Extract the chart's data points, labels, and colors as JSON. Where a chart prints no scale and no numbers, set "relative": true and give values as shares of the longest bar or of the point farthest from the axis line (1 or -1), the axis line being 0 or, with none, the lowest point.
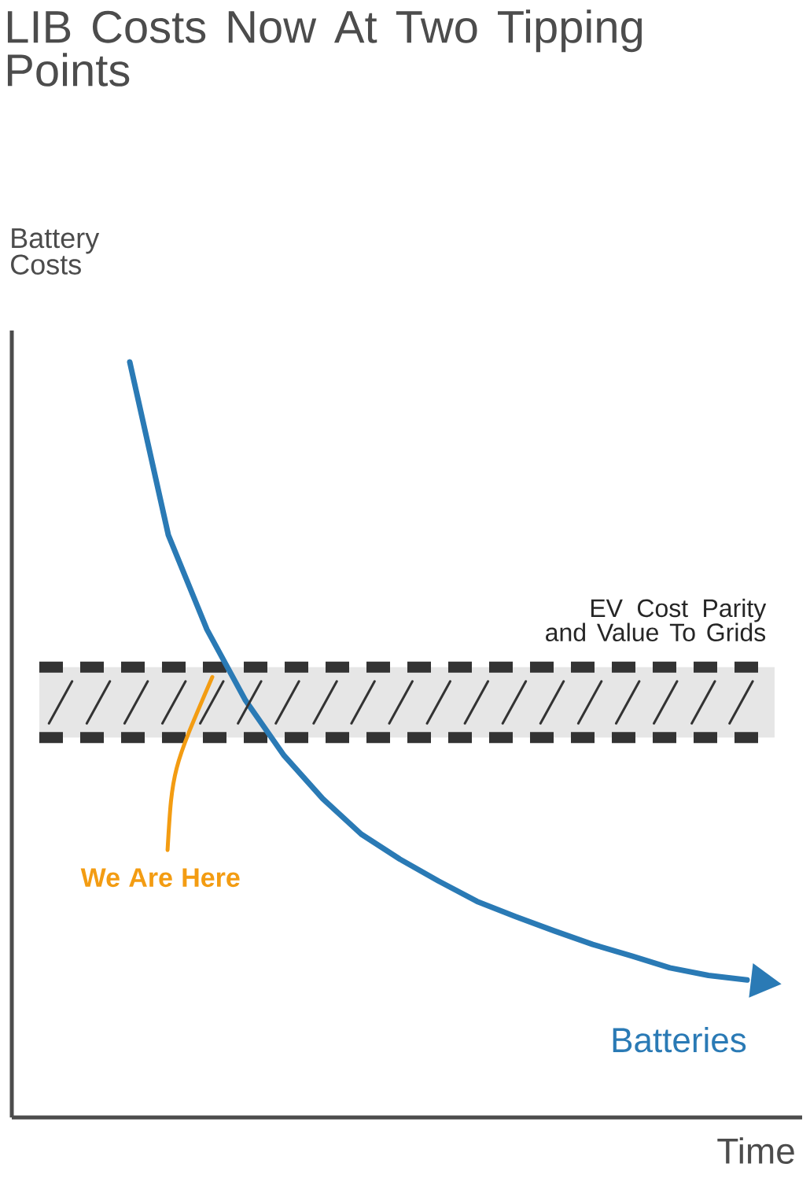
{
  "chart_data": {
    "type": "line",
    "title": "LIB Costs Now At Two Tipping Points",
    "xlabel": "Time",
    "ylabel": "Battery Costs",
    "relative": true,
    "categories": [
      null,
      null,
      null,
      null,
      null,
      null,
      null,
      null,
      null,
      null,
      null,
      null,
      null,
      null,
      null,
      null,
      null
    ],
    "series": [
      {
        "name": "Batteries",
        "color": "#2a7ab5",
        "values": [
          1,
          0.771,
          0.646,
          0.552,
          0.479,
          0.422,
          0.375,
          0.342,
          0.313,
          0.286,
          0.266,
          0.247,
          0.229,
          0.214,
          0.198,
          0.188,
          0.182
        ]
      }
    ],
    "bands": [
      {
        "axis": "y",
        "from": 0.503,
        "to": 0.596,
        "label": "EV Cost Parity and Value To Grids",
        "color": "#e6e6e6"
      }
    ],
    "ref_lines": [
      {
        "axis": "y",
        "value": 0.596,
        "color": "#333333",
        "line_style": "dashed"
      },
      {
        "axis": "y",
        "value": 0.503,
        "color": "#333333",
        "line_style": "dashed"
      }
    ],
    "annotations": [
      "We Are Here"
    ]
  }
}
